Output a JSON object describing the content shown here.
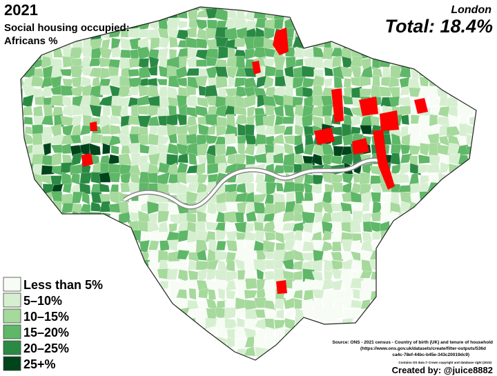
{
  "title": "2021",
  "subtitle": [
    "Social housing occupied:",
    "Africans %"
  ],
  "region": "London",
  "total": "Total: 18.4%",
  "legend": [
    {
      "label": "Less than 5%",
      "color": "#f7fcf5"
    },
    {
      "label": "5–10%",
      "color": "#d7efd1"
    },
    {
      "label": "10–15%",
      "color": "#a6d99c"
    },
    {
      "label": "15–20%",
      "color": "#5fb768"
    },
    {
      "label": "20–25%",
      "color": "#2a8a44"
    },
    {
      "label": "25+%",
      "color": "#00441b"
    }
  ],
  "source": [
    "Source: ONS - 2021 census - Country of birth (UK) and tenure of household",
    "(https://www.ons.gov.uk/datasets/create/filter-outputs/536d",
    "ca4c-78ef-44bc-b45e-343c20019dc9)"
  ],
  "copyright": "Contains OS data © Crown copyright and database right (2023)",
  "credit": "Created by: @juice8882"
}
